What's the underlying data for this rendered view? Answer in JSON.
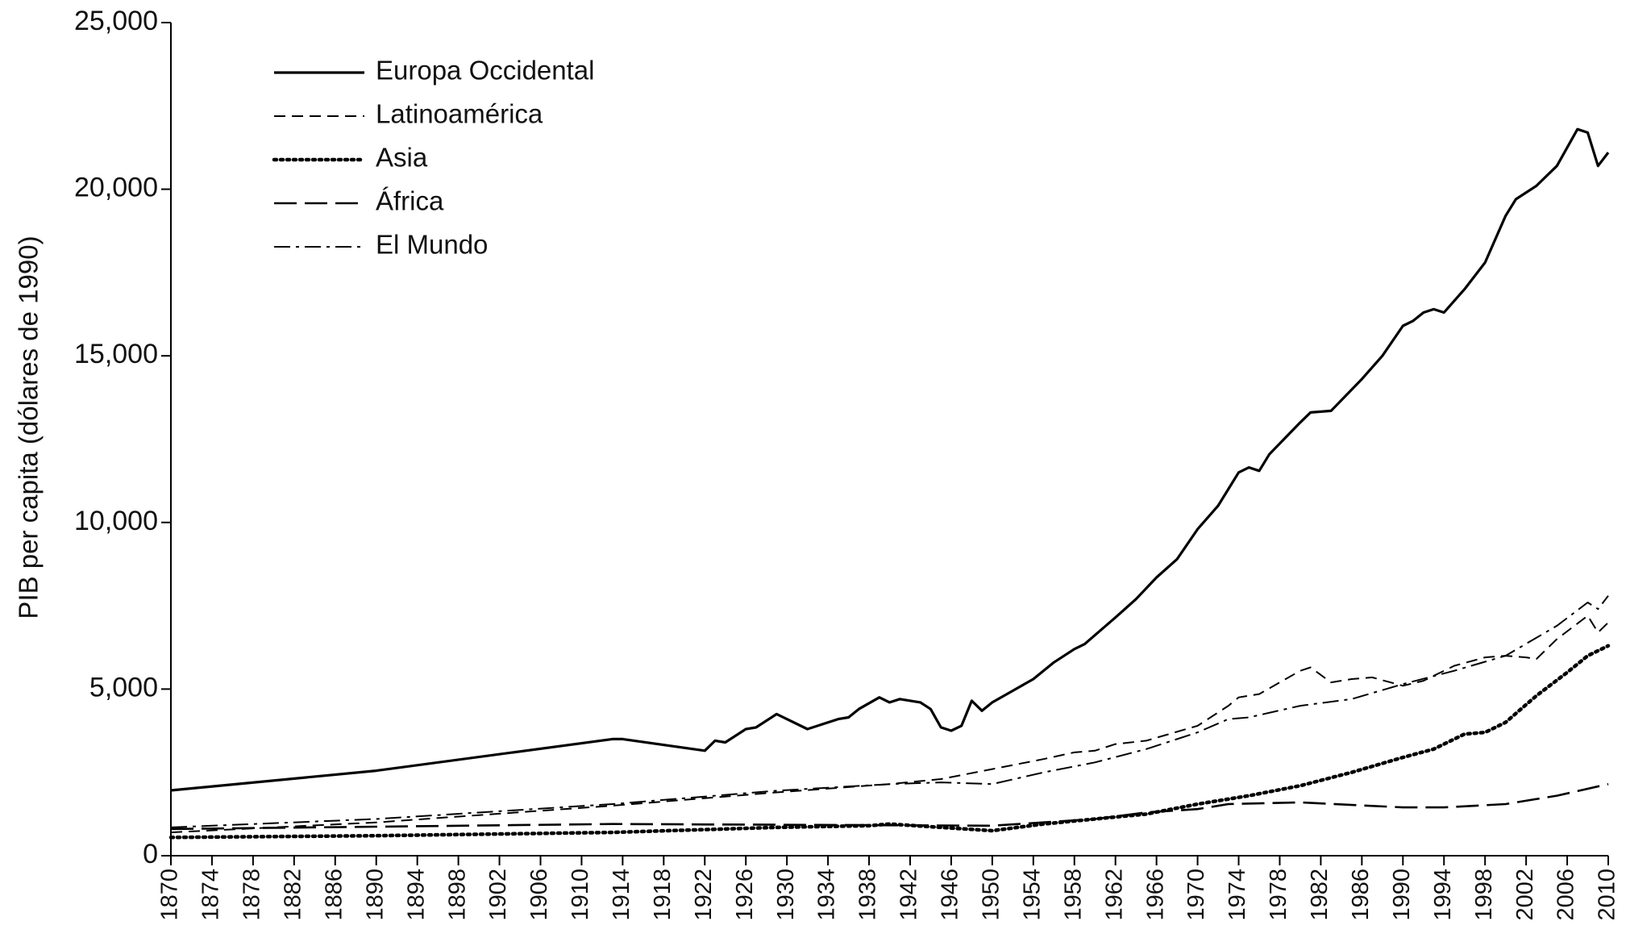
{
  "chart_data": {
    "type": "line",
    "y_label": "PIB per capita (dólares de 1990)",
    "xlim": [
      1870,
      2010
    ],
    "xticks": [
      1870,
      1874,
      1878,
      1882,
      1886,
      1890,
      1894,
      1898,
      1902,
      1906,
      1910,
      1914,
      1918,
      1922,
      1926,
      1930,
      1934,
      1938,
      1942,
      1946,
      1950,
      1954,
      1958,
      1962,
      1966,
      1970,
      1974,
      1978,
      1982,
      1986,
      1990,
      1994,
      1998,
      2002,
      2006,
      2010
    ],
    "ylim": [
      0,
      25000
    ],
    "yticks": [
      0,
      {
        "value": 5000,
        "label": "5,000"
      },
      {
        "value": 10000,
        "label": "10,000"
      },
      {
        "value": 15000,
        "label": "15,000"
      },
      {
        "value": 20000,
        "label": "20,000"
      },
      {
        "value": 25000,
        "label": "25,000"
      }
    ],
    "legend": "upper left",
    "series": [
      {
        "name": "Europa Occidental",
        "color": "#000000",
        "dash": "solid",
        "x": [
          1870,
          1890,
          1913,
          1914,
          1922,
          1923,
          1924,
          1926,
          1927,
          1929,
          1932,
          1935,
          1936,
          1937,
          1939,
          1940,
          1941,
          1943,
          1944,
          1945,
          1946,
          1947,
          1948,
          1949,
          1950,
          1952,
          1954,
          1956,
          1958,
          1959,
          1962,
          1964,
          1966,
          1968,
          1970,
          1972,
          1974,
          1975,
          1976,
          1977,
          1980,
          1981,
          1983,
          1986,
          1988,
          1990,
          1991,
          1992,
          1993,
          1994,
          1996,
          1998,
          2000,
          2001,
          2003,
          2005,
          2007,
          2008,
          2009,
          2010
        ],
        "values": [
          1960,
          2550,
          3500,
          3500,
          3150,
          3450,
          3400,
          3800,
          3850,
          4250,
          3800,
          4100,
          4150,
          4400,
          4750,
          4600,
          4700,
          4600,
          4400,
          3850,
          3750,
          3900,
          4650,
          4350,
          4600,
          4950,
          5300,
          5800,
          6200,
          6350,
          7150,
          7700,
          8350,
          8900,
          9800,
          10500,
          11500,
          11650,
          11550,
          12050,
          13000,
          13300,
          13350,
          14300,
          15000,
          15900,
          16050,
          16300,
          16400,
          16300,
          17000,
          17800,
          19200,
          19700,
          20100,
          20700,
          21800,
          21700,
          20700,
          21100
        ]
      },
      {
        "name": "Latinoamérica",
        "color": "#000000",
        "dash": "dashed",
        "x": [
          1870,
          1890,
          1913,
          1929,
          1940,
          1945,
          1950,
          1955,
          1958,
          1960,
          1962,
          1965,
          1970,
          1973,
          1974,
          1976,
          1980,
          1981,
          1983,
          1985,
          1987,
          1990,
          1992,
          1995,
          1998,
          2000,
          2002,
          2003,
          2005,
          2008,
          2009,
          2010
        ],
        "values": [
          700,
          1000,
          1500,
          1900,
          2150,
          2300,
          2600,
          2900,
          3100,
          3150,
          3350,
          3450,
          3900,
          4500,
          4750,
          4850,
          5550,
          5650,
          5200,
          5300,
          5350,
          5100,
          5250,
          5700,
          5950,
          6000,
          5950,
          5900,
          6500,
          7200,
          6700,
          7000
        ]
      },
      {
        "name": "Asia",
        "color": "#000000",
        "dash": "dotted",
        "x": [
          1870,
          1890,
          1913,
          1929,
          1938,
          1940,
          1945,
          1950,
          1955,
          1960,
          1965,
          1970,
          1975,
          1980,
          1985,
          1990,
          1993,
          1996,
          1998,
          2000,
          2003,
          2006,
          2008,
          2010
        ],
        "values": [
          550,
          600,
          700,
          850,
          900,
          950,
          850,
          750,
          950,
          1100,
          1250,
          1550,
          1800,
          2100,
          2500,
          2950,
          3200,
          3650,
          3700,
          4000,
          4800,
          5500,
          6000,
          6300
        ]
      },
      {
        "name": "África",
        "color": "#000000",
        "dash": "longdash",
        "x": [
          1870,
          1913,
          1950,
          1955,
          1960,
          1965,
          1970,
          1973,
          1980,
          1990,
          1994,
          2000,
          2005,
          2010
        ],
        "values": [
          800,
          950,
          900,
          1000,
          1100,
          1300,
          1400,
          1550,
          1600,
          1450,
          1450,
          1550,
          1800,
          2150
        ]
      },
      {
        "name": "El Mundo",
        "color": "#000000",
        "dash": "dashdot",
        "x": [
          1870,
          1890,
          1913,
          1929,
          1940,
          1945,
          1950,
          1955,
          1960,
          1965,
          1970,
          1973,
          1975,
          1980,
          1985,
          1990,
          1995,
          2000,
          2005,
          2008,
          2009,
          2010
        ],
        "values": [
          850,
          1100,
          1550,
          1950,
          2150,
          2200,
          2150,
          2500,
          2800,
          3200,
          3700,
          4100,
          4150,
          4500,
          4700,
          5150,
          5550,
          6000,
          6900,
          7600,
          7400,
          7800
        ]
      }
    ]
  }
}
